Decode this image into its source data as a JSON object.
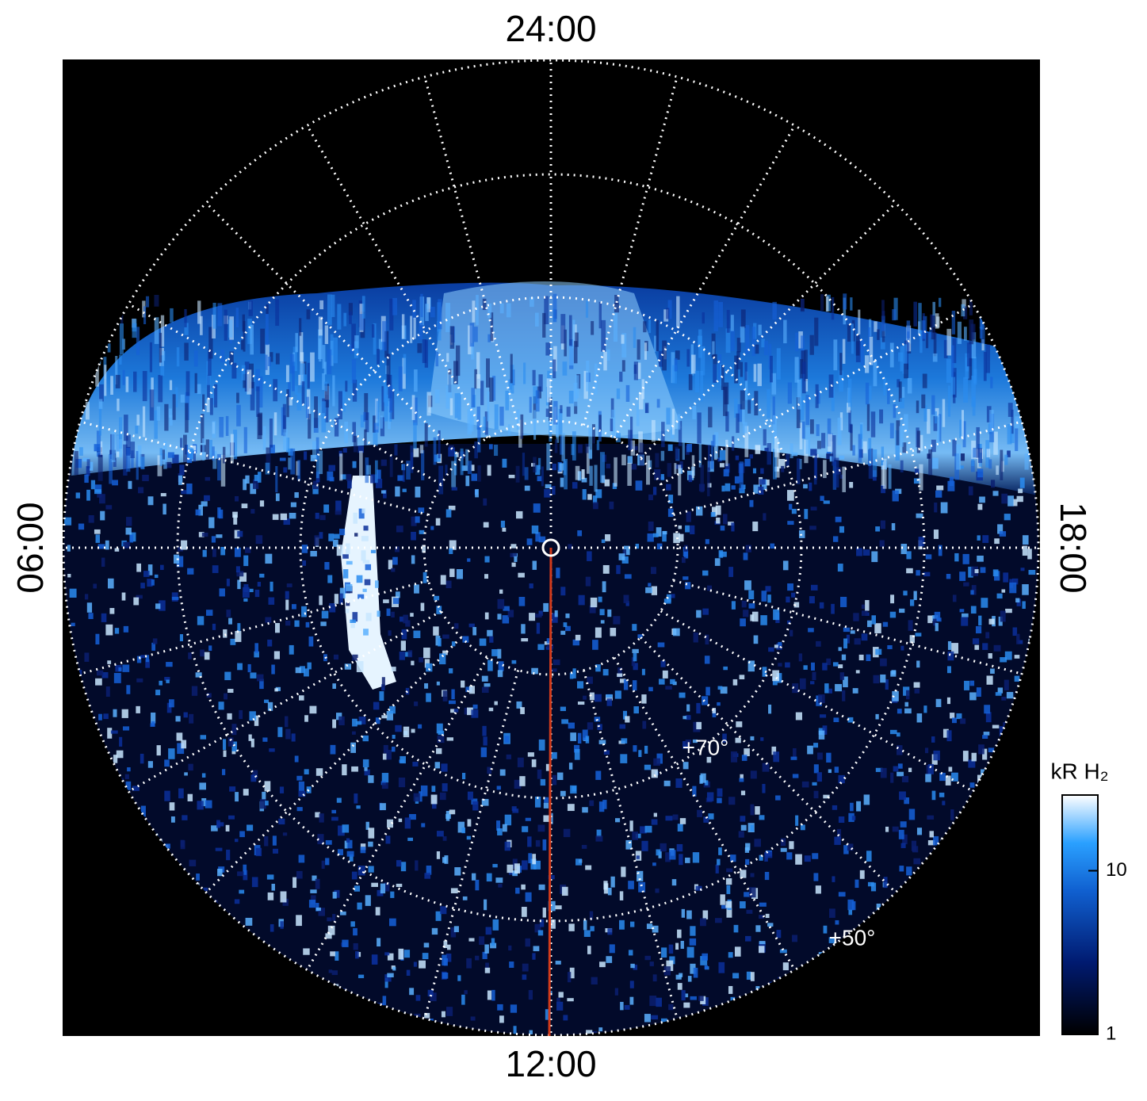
{
  "hour_labels": {
    "top": "24:00",
    "bottom": "12:00",
    "left": "06:00",
    "right": "18:00"
  },
  "latitude_labels": [
    "+70°",
    "+50°"
  ],
  "colorbar": {
    "title": "kR H₂",
    "scale": "log",
    "lim": [
      1,
      29
    ],
    "ticks": [
      1,
      10
    ]
  }
}
